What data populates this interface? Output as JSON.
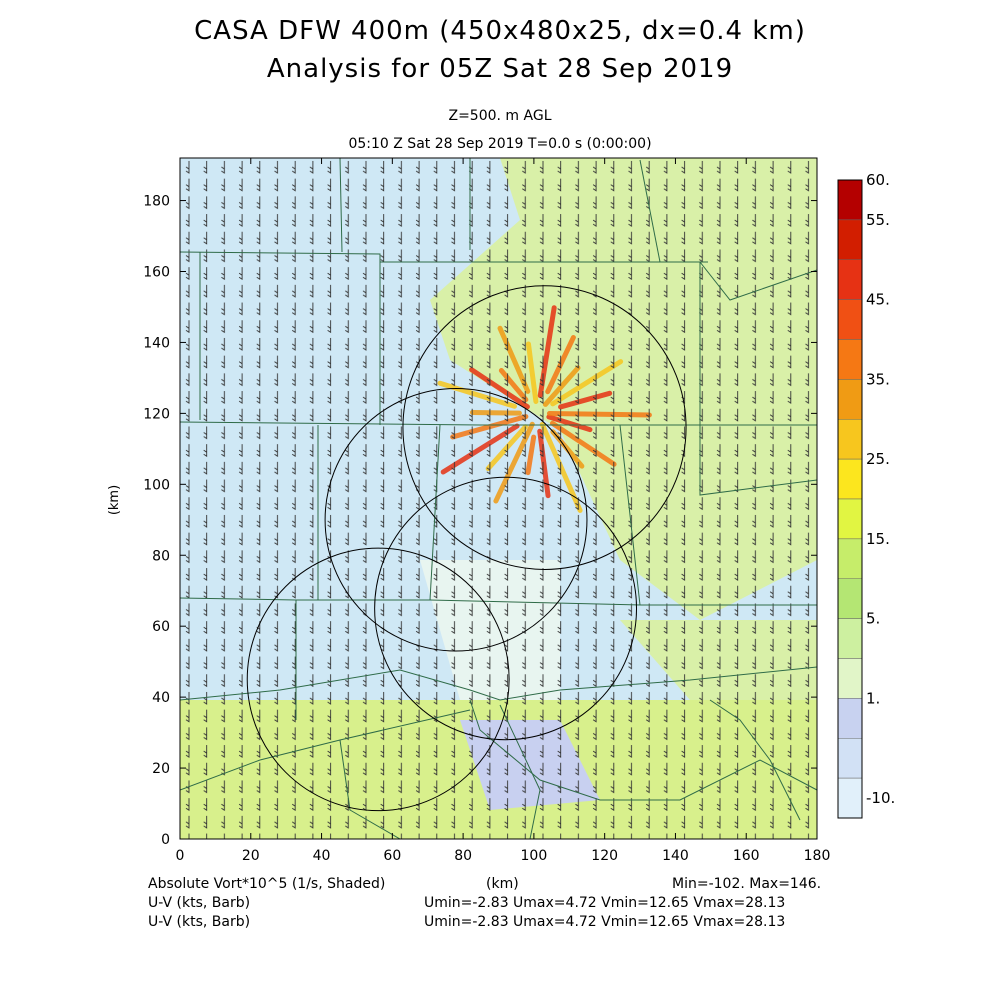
{
  "header": {
    "title_line1": "CASA DFW 400m (450x480x25, dx=0.4 km)",
    "title_line2": "Analysis for 05Z Sat 28 Sep 2019",
    "level": "Z=500. m AGL",
    "timestamp": "05:10 Z Sat 28 Sep 2019    T=0.0 s (0:00:00)"
  },
  "axes": {
    "x_ticks": [
      "0",
      "20",
      "40",
      "60",
      "80",
      "100",
      "120",
      "140",
      "160",
      "180"
    ],
    "y_ticks": [
      "0",
      "20",
      "40",
      "60",
      "80",
      "100",
      "120",
      "140",
      "160",
      "180"
    ],
    "x_label": "(km)",
    "y_label": "(km)"
  },
  "colorbar": {
    "labels": [
      "60.",
      "55.",
      "45.",
      "35.",
      "25.",
      "15.",
      "5.",
      "1.",
      "-10."
    ],
    "colors": [
      "#b40000",
      "#d21e00",
      "#e63214",
      "#f05014",
      "#f57814",
      "#f09b14",
      "#f7c61e",
      "#fce61e",
      "#e1f542",
      "#c6ed6a",
      "#b4e673",
      "#cdf0a0",
      "#e1f5c8",
      "#c8d2f0",
      "#d2e1f5",
      "#e1f0fa"
    ]
  },
  "footer": {
    "field_label": "Absolute Vort*10^5 (1/s, Shaded)",
    "km_label": "(km)",
    "minmax": "Min=-102. Max=146.",
    "barb1_label": "U-V (kts, Barb)",
    "barb1_stats": "Umin=-2.83 Umax=4.72 Vmin=12.65 Vmax=28.13",
    "barb2_label": "U-V (kts, Barb)",
    "barb2_stats": "Umin=-2.83 Umax=4.72 Vmin=12.65 Vmax=28.13"
  },
  "map": {
    "radar_rings": [
      {
        "cx": 103,
        "cy": 116,
        "r": 40
      },
      {
        "cx": 78,
        "cy": 90,
        "r": 37
      },
      {
        "cx": 92,
        "cy": 65,
        "r": 37
      },
      {
        "cx": 56,
        "cy": 45,
        "r": 37
      }
    ]
  }
}
